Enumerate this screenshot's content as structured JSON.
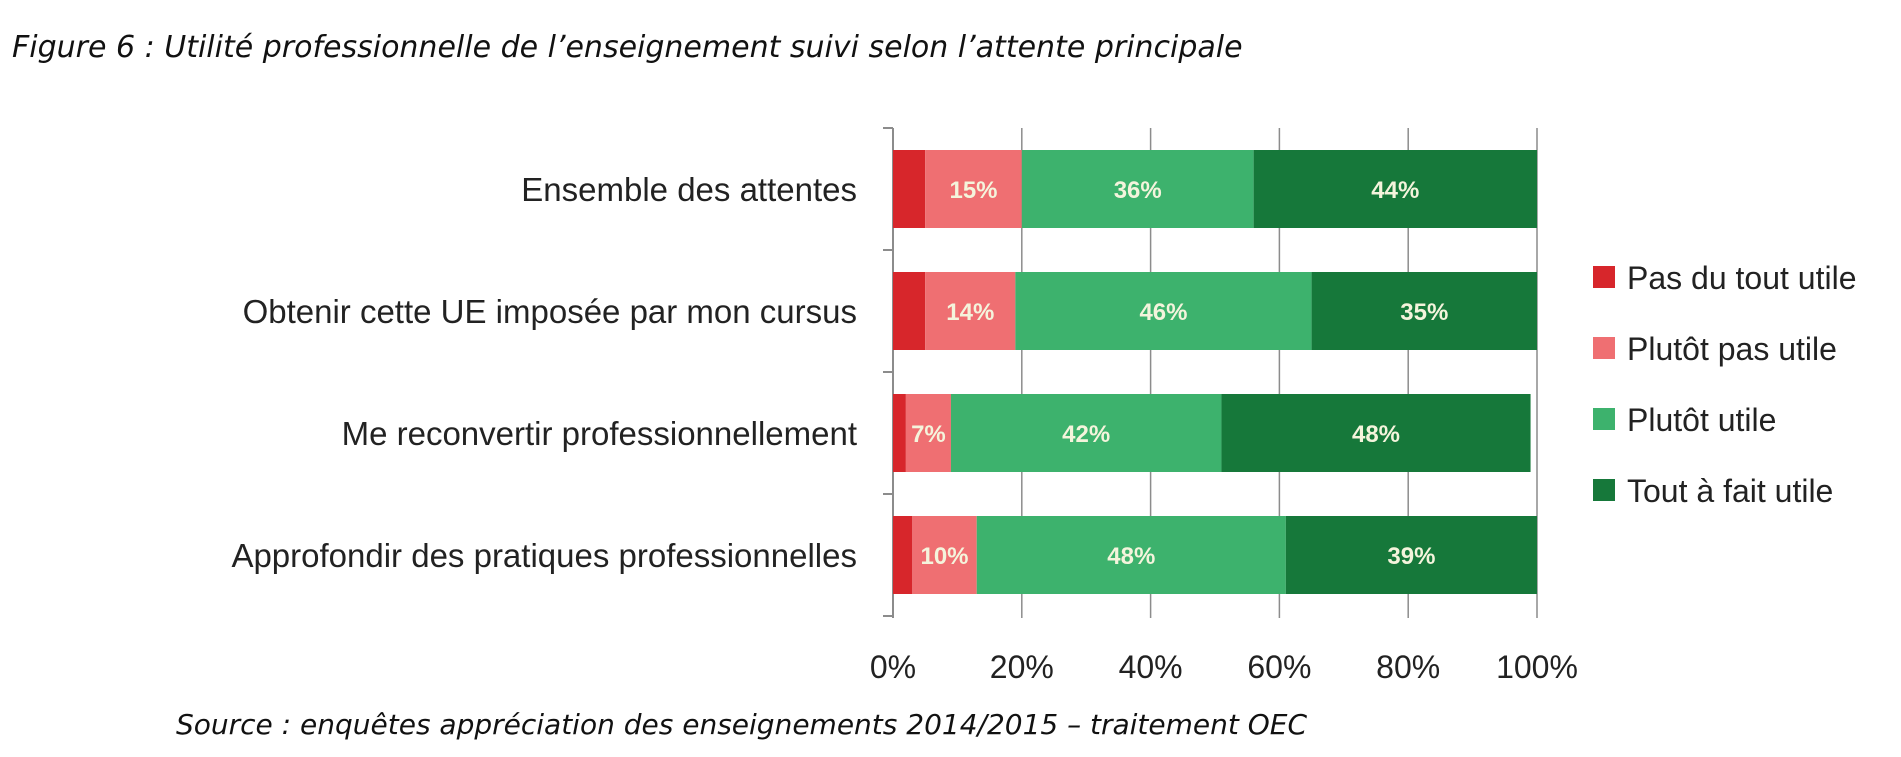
{
  "figure": {
    "title": "Figure 6 : Utilité professionnelle de l’enseignement suivi selon l’attente principale",
    "source": "Source : enquêtes appréciation des enseignements 2014/2015 – traitement OEC"
  },
  "chart_data": {
    "type": "bar",
    "orientation": "horizontal",
    "stacked": true,
    "percent_stacked": true,
    "title": "",
    "xlabel": "",
    "ylabel": "",
    "xlim": [
      0,
      100
    ],
    "x_ticks": [
      "0%",
      "20%",
      "40%",
      "60%",
      "80%",
      "100%"
    ],
    "grid": "vertical",
    "legend_position": "right",
    "categories": [
      "Ensemble des attentes",
      "Obtenir cette UE imposée par mon cursus",
      "Me reconvertir professionnellement",
      "Approfondir des pratiques professionnelles"
    ],
    "series": [
      {
        "name": "Pas du tout utile",
        "color": "#d7262b",
        "values": [
          5,
          5,
          2,
          3
        ],
        "labels": [
          "",
          "",
          "",
          ""
        ]
      },
      {
        "name": "Plutôt pas utile",
        "color": "#ef6f72",
        "values": [
          15,
          14,
          7,
          10
        ],
        "labels": [
          "15%",
          "14%",
          "7%",
          "10%"
        ]
      },
      {
        "name": "Plutôt utile",
        "color": "#3db26d",
        "values": [
          36,
          46,
          42,
          48
        ],
        "labels": [
          "36%",
          "46%",
          "42%",
          "48%"
        ]
      },
      {
        "name": "Tout à fait utile",
        "color": "#16783a",
        "values": [
          44,
          35,
          48,
          39
        ],
        "labels": [
          "44%",
          "35%",
          "48%",
          "39%"
        ]
      }
    ]
  }
}
